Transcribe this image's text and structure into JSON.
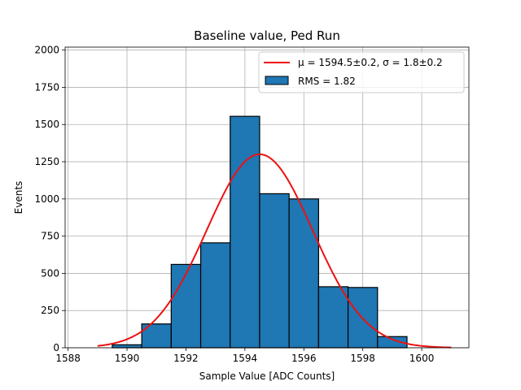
{
  "chart_data": {
    "type": "bar",
    "title": "Baseline value, Ped Run",
    "xlabel": "Sample Value [ADC Counts]",
    "ylabel": "Events",
    "xlim": [
      1587.9,
      1601.6
    ],
    "ylim": [
      0,
      2020
    ],
    "grid": true,
    "legend_position": "top-right",
    "xticks": [
      1588,
      1590,
      1592,
      1594,
      1596,
      1598,
      1600
    ],
    "yticks": [
      0,
      250,
      500,
      750,
      1000,
      1250,
      1500,
      1750,
      2000
    ],
    "bins": [
      {
        "x0": 1589.5,
        "x1": 1590.5,
        "count": 20
      },
      {
        "x0": 1590.5,
        "x1": 1591.5,
        "count": 160
      },
      {
        "x0": 1591.5,
        "x1": 1592.5,
        "count": 560
      },
      {
        "x0": 1592.5,
        "x1": 1593.5,
        "count": 705
      },
      {
        "x0": 1593.5,
        "x1": 1594.5,
        "count": 1555
      },
      {
        "x0": 1594.5,
        "x1": 1595.5,
        "count": 1035
      },
      {
        "x0": 1595.5,
        "x1": 1596.5,
        "count": 1000
      },
      {
        "x0": 1596.5,
        "x1": 1597.5,
        "count": 410
      },
      {
        "x0": 1597.5,
        "x1": 1598.5,
        "count": 405
      },
      {
        "x0": 1598.5,
        "x1": 1599.5,
        "count": 75
      }
    ],
    "hist_color": "#1f77b4",
    "fit": {
      "label": "μ = 1594.5±0.2, σ = 1.8±0.2",
      "mu": 1594.5,
      "sigma": 1.8,
      "amplitude": 1300,
      "x_range": [
        1589,
        1601
      ],
      "color": "#ee1111"
    },
    "hist_label": "RMS = 1.82"
  }
}
